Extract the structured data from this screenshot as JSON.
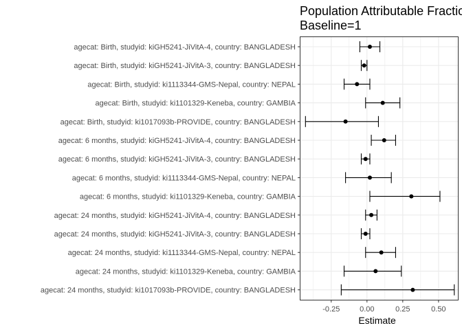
{
  "chart_data": {
    "type": "forest",
    "title": "Population Attributable Fraction",
    "subtitle": "Baseline=1",
    "xlabel": "Estimate",
    "ylabel": "",
    "xlim": [
      -0.47,
      0.64
    ],
    "x_ticks": [
      -0.25,
      0.0,
      0.25,
      0.5
    ],
    "x_tick_labels": [
      "-0.25",
      "0.00",
      "0.25",
      "0.50"
    ],
    "grid": true,
    "colors": {
      "point": "#000000",
      "line": "#000000",
      "grid": "#ebebeb",
      "border": "#333333"
    },
    "rows": [
      {
        "label": "agecat: Birth, studyid: kiGH5241-JiVitA-4, country: BANGLADESH",
        "estimate": 0.02,
        "lower": -0.05,
        "upper": 0.09
      },
      {
        "label": "agecat: Birth, studyid: kiGH5241-JiVitA-3, country: BANGLADESH",
        "estimate": -0.02,
        "lower": -0.04,
        "upper": 0.0
      },
      {
        "label": "agecat: Birth, studyid: ki1113344-GMS-Nepal, country: NEPAL",
        "estimate": -0.07,
        "lower": -0.16,
        "upper": 0.02
      },
      {
        "label": "agecat: Birth, studyid: ki1101329-Keneba, country: GAMBIA",
        "estimate": 0.11,
        "lower": -0.01,
        "upper": 0.23
      },
      {
        "label": "agecat: Birth, studyid: ki1017093b-PROVIDE, country: BANGLADESH",
        "estimate": -0.15,
        "lower": -0.43,
        "upper": 0.08
      },
      {
        "label": "agecat: 6 months, studyid: kiGH5241-JiVitA-4, country: BANGLADESH",
        "estimate": 0.12,
        "lower": 0.03,
        "upper": 0.2
      },
      {
        "label": "agecat: 6 months, studyid: kiGH5241-JiVitA-3, country: BANGLADESH",
        "estimate": -0.01,
        "lower": -0.04,
        "upper": 0.02
      },
      {
        "label": "agecat: 6 months, studyid: ki1113344-GMS-Nepal, country: NEPAL",
        "estimate": 0.02,
        "lower": -0.15,
        "upper": 0.17
      },
      {
        "label": "agecat: 6 months, studyid: ki1101329-Keneba, country: GAMBIA",
        "estimate": 0.31,
        "lower": 0.02,
        "upper": 0.51
      },
      {
        "label": "agecat: 24 months, studyid: kiGH5241-JiVitA-4, country: BANGLADESH",
        "estimate": 0.03,
        "lower": -0.01,
        "upper": 0.07
      },
      {
        "label": "agecat: 24 months, studyid: kiGH5241-JiVitA-3, country: BANGLADESH",
        "estimate": -0.01,
        "lower": -0.04,
        "upper": 0.02
      },
      {
        "label": "agecat: 24 months, studyid: ki1113344-GMS-Nepal, country: NEPAL",
        "estimate": 0.1,
        "lower": -0.01,
        "upper": 0.2
      },
      {
        "label": "agecat: 24 months, studyid: ki1101329-Keneba, country: GAMBIA",
        "estimate": 0.06,
        "lower": -0.16,
        "upper": 0.24
      },
      {
        "label": "agecat: 24 months, studyid: ki1017093b-PROVIDE, country: BANGLADESH",
        "estimate": 0.32,
        "lower": -0.18,
        "upper": 0.61
      }
    ]
  }
}
